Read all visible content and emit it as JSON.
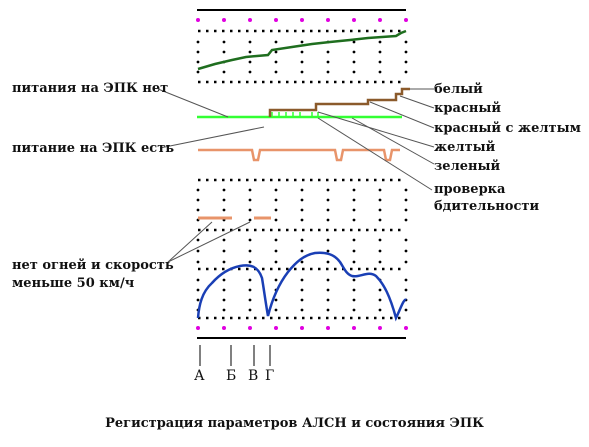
{
  "labels": {
    "epk_power_off": "питания на ЭПК нет",
    "epk_power_on": "питание на ЭПК есть",
    "no_lights": "нет огней и скорость",
    "speed_below": "меньше 50 км/ч"
  },
  "signals": {
    "white": "белый",
    "red": "красный",
    "red_yellow": "красный с желтым",
    "yellow": "желтый",
    "green": "зеленый",
    "vigilance_1": "проверка",
    "vigilance_2": "бдительности"
  },
  "markers": [
    "А",
    "Б",
    "В",
    "Г"
  ],
  "caption": "Регистрация параметров АЛСН и состояния ЭПК",
  "colors": {
    "frame": "#000000",
    "magenta_dots": "#e000e0",
    "dark_green_trace": "#1f6e1f",
    "light_green_trace": "#33ff33",
    "brown_trace": "#8b5a2b",
    "orange_trace": "#e8946a",
    "blue_trace": "#1a3fb5"
  }
}
